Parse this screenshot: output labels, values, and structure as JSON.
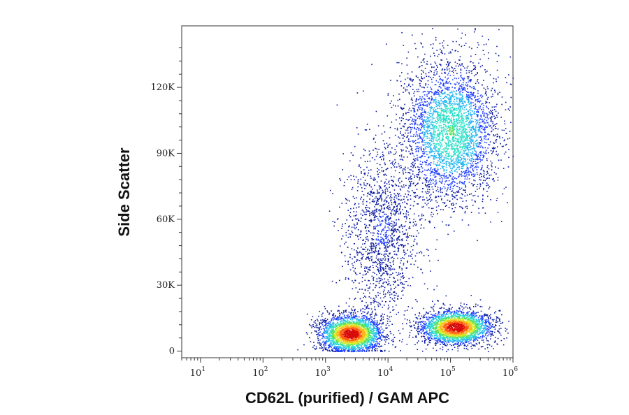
{
  "chart_data": {
    "type": "scatter",
    "subtype": "flow-cytometry density dot plot",
    "title": "",
    "xlabel": "CD62L (purified) / GAM APC",
    "ylabel": "Side Scatter",
    "xscale": "log",
    "xlim": [
      5,
      1000000
    ],
    "ylim": [
      -3000,
      148000
    ],
    "xticks": [
      {
        "value": 10,
        "base": "10",
        "exp": "1"
      },
      {
        "value": 100,
        "base": "10",
        "exp": "2"
      },
      {
        "value": 1000,
        "base": "10",
        "exp": "3"
      },
      {
        "value": 10000,
        "base": "10",
        "exp": "4"
      },
      {
        "value": 100000,
        "base": "10",
        "exp": "5"
      },
      {
        "value": 1000000,
        "base": "10",
        "exp": "6"
      }
    ],
    "yticks": [
      {
        "value": 0,
        "label": "0"
      },
      {
        "value": 30000,
        "label": "30K"
      },
      {
        "value": 60000,
        "label": "60K"
      },
      {
        "value": 90000,
        "label": "90K"
      },
      {
        "value": 120000,
        "label": "120K"
      }
    ],
    "grid": false,
    "legend": "none",
    "color_scale": [
      "#0a1aa0",
      "#1f3fff",
      "#22b6f0",
      "#2ee0c8",
      "#5ee05a",
      "#d6ee2a",
      "#ffb21c",
      "#ff5a12",
      "#d80c0c"
    ],
    "populations": [
      {
        "name": "CD62L-negative low-SSC cluster",
        "x_center": 2500,
        "y_center": 8000,
        "log_spread": 0.25,
        "y_spread": 4200,
        "peak_density": "high"
      },
      {
        "name": "CD62L-positive low-SSC cluster",
        "x_center": 120000,
        "y_center": 11000,
        "log_spread": 0.28,
        "y_spread": 3800,
        "peak_density": "high"
      },
      {
        "name": "high-SSC cluster",
        "x_center": 100000,
        "y_center": 100000,
        "log_spread": 0.38,
        "y_spread": 16000,
        "peak_density": "medium"
      },
      {
        "name": "intermediate stream",
        "x_center": 8000,
        "y_center": 55000,
        "log_spread": 0.3,
        "y_spread": 20000,
        "peak_density": "low"
      }
    ]
  }
}
